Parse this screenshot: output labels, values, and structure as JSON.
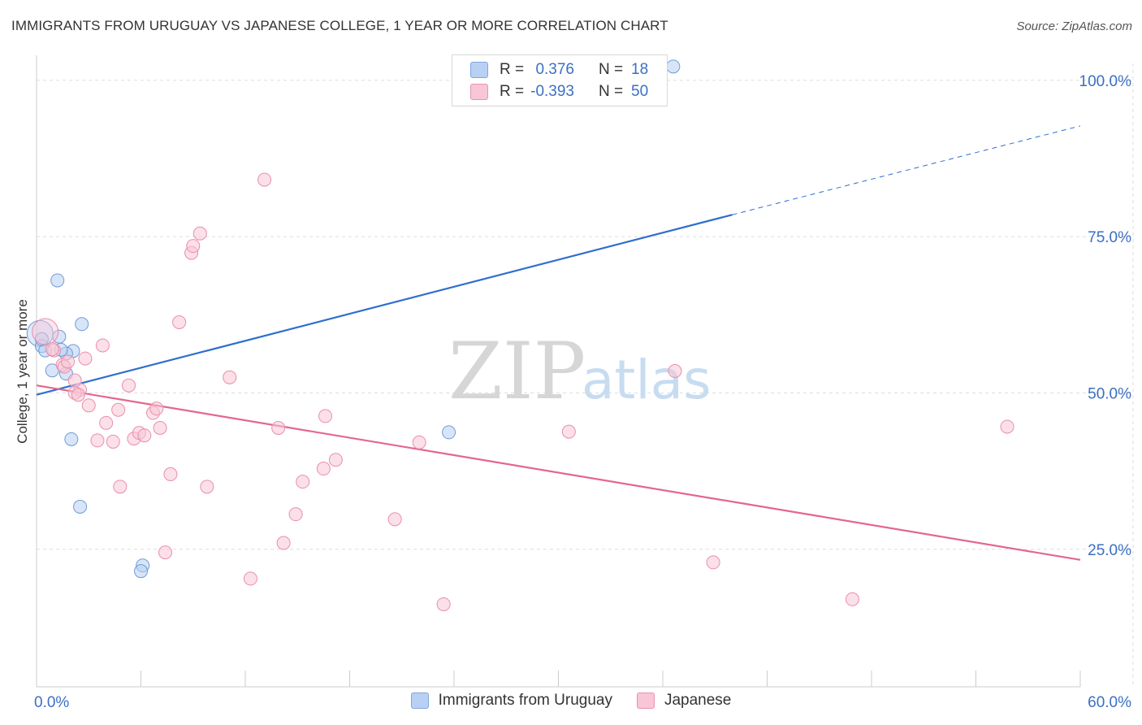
{
  "title": "IMMIGRANTS FROM URUGUAY VS JAPANESE COLLEGE, 1 YEAR OR MORE CORRELATION CHART",
  "source": "Source: ZipAtlas.com",
  "watermark": {
    "zip": "ZIP",
    "atlas": "atlas"
  },
  "legend": {
    "r_label": "R =",
    "n_label": "N =",
    "rows": [
      {
        "name": "Immigrants from Uruguay",
        "r": "0.376",
        "n": "18",
        "fill": "#b8d0f3",
        "stroke": "#7fa6df"
      },
      {
        "name": "Japanese",
        "r": "-0.393",
        "n": "50",
        "fill": "#f8c6d6",
        "stroke": "#e793ae"
      }
    ]
  },
  "colors": {
    "blue_point_fill": "#b8d0f3",
    "blue_point_stroke": "#6f9bd8",
    "blue_line": "#2f6fce",
    "pink_point_fill": "#f8c6d6",
    "pink_point_stroke": "#e98eac",
    "pink_line": "#e4668f",
    "grid": "#dddddd",
    "axis": "#cccccc",
    "tick_label": "#3b6fc4"
  },
  "chart_data": {
    "type": "scatter",
    "title": "IMMIGRANTS FROM URUGUAY VS JAPANESE COLLEGE, 1 YEAR OR MORE CORRELATION CHART",
    "xlabel": "",
    "ylabel": "College, 1 year or more",
    "xlim": [
      0,
      60
    ],
    "ylim": [
      3,
      104
    ],
    "x_tick_labels": [
      {
        "value": 0,
        "label": "0.0%"
      },
      {
        "value": 60,
        "label": "60.0%"
      }
    ],
    "y_tick_labels": [
      {
        "value": 100,
        "label": "100.0%"
      },
      {
        "value": 75,
        "label": "75.0%"
      },
      {
        "value": 50,
        "label": "50.0%"
      },
      {
        "value": 25,
        "label": "25.0%"
      }
    ],
    "gridlines_y": [
      100,
      75,
      50,
      25
    ],
    "series": [
      {
        "name": "Immigrants from Uruguay",
        "color": "blue",
        "points": [
          [
            36.6,
            102.2
          ],
          [
            1.2,
            68.0
          ],
          [
            2.6,
            61.0
          ],
          [
            0.2,
            59.5
          ],
          [
            0.3,
            57.5
          ],
          [
            0.5,
            56.8
          ],
          [
            1.3,
            59.0
          ],
          [
            2.1,
            56.7
          ],
          [
            1.7,
            56.3
          ],
          [
            1.4,
            56.9
          ],
          [
            0.9,
            53.6
          ],
          [
            1.7,
            53.1
          ],
          [
            2.0,
            42.6
          ],
          [
            2.5,
            31.8
          ],
          [
            6.1,
            22.4
          ],
          [
            6.0,
            21.5
          ],
          [
            23.7,
            43.7
          ],
          [
            0.3,
            58.6
          ]
        ],
        "trend": {
          "x0": 0,
          "y0": 49.7,
          "x1": 40,
          "y1": 78.5,
          "dashed_to_x": 60,
          "dashed_to_y": 92.7
        }
      },
      {
        "name": "Japanese",
        "color": "pink",
        "points": [
          [
            0.5,
            59.8
          ],
          [
            1.0,
            56.8
          ],
          [
            1.5,
            54.5
          ],
          [
            1.6,
            54.2
          ],
          [
            2.5,
            50.5
          ],
          [
            2.2,
            50.0
          ],
          [
            2.4,
            49.7
          ],
          [
            2.8,
            55.5
          ],
          [
            3.8,
            57.6
          ],
          [
            3.0,
            48.0
          ],
          [
            3.5,
            42.4
          ],
          [
            4.0,
            45.2
          ],
          [
            4.4,
            42.2
          ],
          [
            4.7,
            47.3
          ],
          [
            5.3,
            51.2
          ],
          [
            5.6,
            42.7
          ],
          [
            5.9,
            43.6
          ],
          [
            6.2,
            43.2
          ],
          [
            6.7,
            46.8
          ],
          [
            6.9,
            47.5
          ],
          [
            7.1,
            44.4
          ],
          [
            7.7,
            37.0
          ],
          [
            8.2,
            61.3
          ],
          [
            4.8,
            35.0
          ],
          [
            7.4,
            24.5
          ],
          [
            8.9,
            72.4
          ],
          [
            9.0,
            73.5
          ],
          [
            9.4,
            75.5
          ],
          [
            9.8,
            35.0
          ],
          [
            11.1,
            52.5
          ],
          [
            12.3,
            20.3
          ],
          [
            13.1,
            84.1
          ],
          [
            13.9,
            44.4
          ],
          [
            14.2,
            26.0
          ],
          [
            14.9,
            30.6
          ],
          [
            15.3,
            35.8
          ],
          [
            16.5,
            37.9
          ],
          [
            16.6,
            46.3
          ],
          [
            17.2,
            39.3
          ],
          [
            20.6,
            29.8
          ],
          [
            22.0,
            42.1
          ],
          [
            23.4,
            16.2
          ],
          [
            30.6,
            43.8
          ],
          [
            36.7,
            53.5
          ],
          [
            38.9,
            22.9
          ],
          [
            46.9,
            17.0
          ],
          [
            55.8,
            44.6
          ],
          [
            0.9,
            57.0
          ],
          [
            2.2,
            52.0
          ],
          [
            1.8,
            55.0
          ]
        ],
        "trend": {
          "x0": 0,
          "y0": 51.2,
          "x1": 60,
          "y1": 23.3
        }
      }
    ]
  }
}
